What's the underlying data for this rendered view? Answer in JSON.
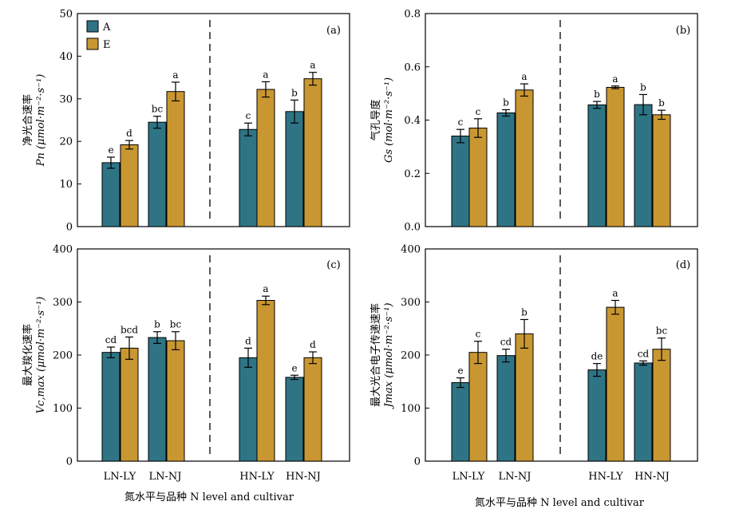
{
  "colors": {
    "A": "#2e7485",
    "E": "#c99731"
  },
  "legend": [
    {
      "key": "A",
      "label": "A"
    },
    {
      "key": "E",
      "label": "E"
    }
  ],
  "xlabel": "氮水平与品种 N level and cultivar",
  "chart_data": [
    {
      "type": "bar",
      "panel": "(a)",
      "ylabel_cn": "净光合速率",
      "ylabel_en": "Pn (μmol·m⁻²·s⁻¹)",
      "ylim": [
        0,
        50
      ],
      "yticks": [
        0,
        10,
        20,
        30,
        40,
        50
      ],
      "categories": [
        "LN-LY",
        "LN-NJ",
        "HN-LY",
        "HN-NJ"
      ],
      "series": [
        {
          "name": "A",
          "values": [
            15.0,
            24.5,
            22.8,
            27.0
          ],
          "errors": [
            1.3,
            1.4,
            1.5,
            2.7
          ],
          "letters": [
            "e",
            "bc",
            "c",
            "b"
          ]
        },
        {
          "name": "E",
          "values": [
            19.2,
            31.7,
            32.2,
            34.7
          ],
          "errors": [
            1.0,
            2.2,
            1.8,
            1.5
          ],
          "letters": [
            "d",
            "a",
            "a",
            "a"
          ]
        }
      ],
      "legend_position": "top-left"
    },
    {
      "type": "bar",
      "panel": "(b)",
      "ylabel_cn": "气孔导度",
      "ylabel_en": "Gs (mol·m⁻²·s⁻¹)",
      "ylim": [
        0,
        0.8
      ],
      "yticks": [
        0.0,
        0.2,
        0.4,
        0.6,
        0.8
      ],
      "categories": [
        "LN-LY",
        "LN-NJ",
        "HN-LY",
        "HN-NJ"
      ],
      "series": [
        {
          "name": "A",
          "values": [
            0.34,
            0.427,
            0.457,
            0.458
          ],
          "errors": [
            0.025,
            0.012,
            0.013,
            0.038
          ],
          "letters": [
            "c",
            "b",
            "b",
            "b"
          ]
        },
        {
          "name": "E",
          "values": [
            0.37,
            0.513,
            0.523,
            0.42
          ],
          "errors": [
            0.035,
            0.023,
            0.005,
            0.017
          ],
          "letters": [
            "c",
            "a",
            "a",
            "b"
          ]
        }
      ]
    },
    {
      "type": "bar",
      "panel": "(c)",
      "ylabel_cn": "最大羧化速率",
      "ylabel_en": "Vc,max (μmol·m⁻²·s⁻¹)",
      "ylim": [
        0,
        400
      ],
      "yticks": [
        0,
        100,
        200,
        300,
        400
      ],
      "categories": [
        "LN-LY",
        "LN-NJ",
        "HN-LY",
        "HN-NJ"
      ],
      "series": [
        {
          "name": "A",
          "values": [
            205,
            233,
            195,
            158
          ],
          "errors": [
            10,
            11,
            18,
            4
          ],
          "letters": [
            "cd",
            "b",
            "d",
            "e"
          ]
        },
        {
          "name": "E",
          "values": [
            213,
            227,
            303,
            195
          ],
          "errors": [
            21,
            17,
            8,
            11
          ],
          "letters": [
            "bcd",
            "bc",
            "a",
            "d"
          ]
        }
      ]
    },
    {
      "type": "bar",
      "panel": "(d)",
      "ylabel_cn": "最大光合电子传递速率",
      "ylabel_en": "Jmax (μmol·m⁻²·s⁻¹)",
      "ylim": [
        0,
        400
      ],
      "yticks": [
        0,
        100,
        200,
        300,
        400
      ],
      "categories": [
        "LN-LY",
        "LN-NJ",
        "HN-LY",
        "HN-NJ"
      ],
      "series": [
        {
          "name": "A",
          "values": [
            148,
            199,
            172,
            185
          ],
          "errors": [
            9,
            12,
            12,
            4
          ],
          "letters": [
            "e",
            "cd",
            "de",
            "cd"
          ]
        },
        {
          "name": "E",
          "values": [
            205,
            240,
            290,
            211
          ],
          "errors": [
            21,
            27,
            13,
            21
          ],
          "letters": [
            "c",
            "b",
            "a",
            "bc"
          ]
        }
      ]
    }
  ]
}
